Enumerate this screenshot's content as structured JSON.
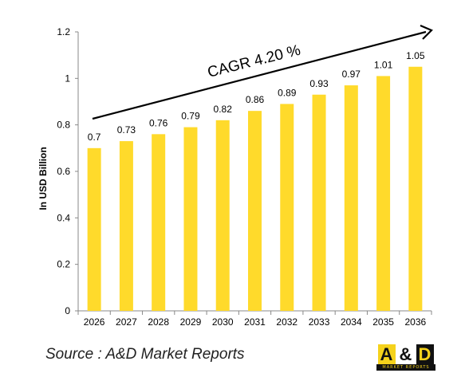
{
  "chart_data": {
    "type": "bar",
    "categories": [
      "2026",
      "2027",
      "2028",
      "2029",
      "2030",
      "2031",
      "2032",
      "2033",
      "2034",
      "2035",
      "2036"
    ],
    "values": [
      0.7,
      0.73,
      0.76,
      0.79,
      0.82,
      0.86,
      0.89,
      0.93,
      0.97,
      1.01,
      1.05
    ],
    "data_labels": [
      "0.7",
      "0.73",
      "0.76",
      "0.79",
      "0.82",
      "0.86",
      "0.89",
      "0.93",
      "0.97",
      "1.01",
      "1.05"
    ],
    "ylabel": "In USD Billion",
    "ylim": [
      0,
      1.2
    ],
    "yticks": [
      "0",
      "0.2",
      "0.4",
      "0.6",
      "0.8",
      "1",
      "1.2"
    ],
    "annotation": "CAGR  4.20 %",
    "bar_color": "#FFDA2B",
    "grid": false,
    "legend": "none"
  },
  "source": "Source : A&D Market Reports",
  "logo": {
    "text_a": "A",
    "text_amp": "&",
    "text_d": "D",
    "subtext": "MARKET REPORTS"
  }
}
